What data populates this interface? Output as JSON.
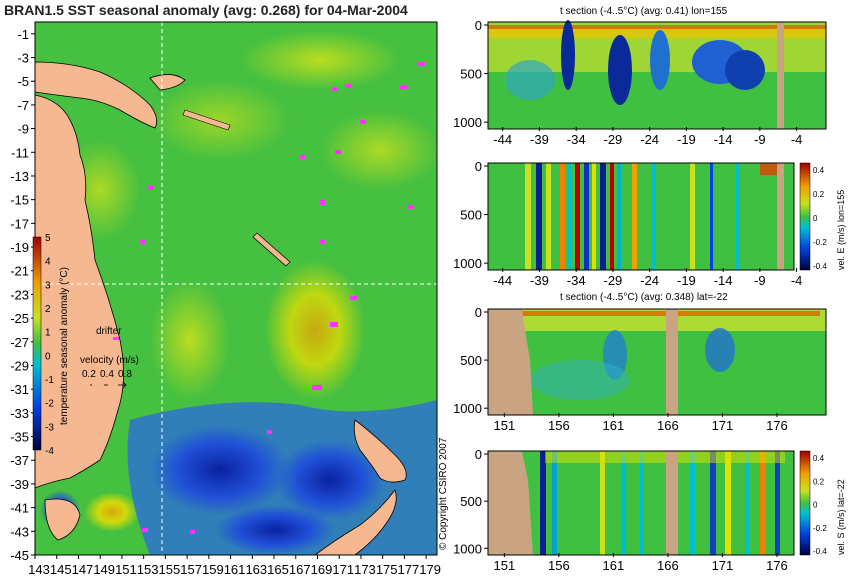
{
  "chart_data": [
    {
      "type": "heatmap",
      "title": "BRAN1.5 SST seasonal anomaly (avg: 0.268) for 04-Mar-2004",
      "xlabel": "",
      "ylabel": "",
      "xlim": [
        143,
        180
      ],
      "ylim": [
        -45,
        0
      ],
      "x_ticks": [
        "143",
        "145",
        "147",
        "149",
        "151",
        "153",
        "155",
        "157",
        "159",
        "161",
        "163",
        "165",
        "167",
        "169",
        "171",
        "173",
        "175",
        "177",
        "179"
      ],
      "y_ticks": [
        "-1",
        "-3",
        "-5",
        "-7",
        "-9",
        "-11",
        "-13",
        "-15",
        "-17",
        "-19",
        "-21",
        "-23",
        "-25",
        "-27",
        "-29",
        "-31",
        "-33",
        "-35",
        "-37",
        "-39",
        "-41",
        "-43",
        "-45"
      ],
      "crosshair": {
        "lon": 155,
        "lat": -22
      },
      "colorbar": {
        "label": "temperature seasonal anomaly (°C)",
        "ticks": [
          "5",
          "4",
          "3",
          "2",
          "1",
          "0",
          "-1",
          "-2",
          "-3",
          "-4"
        ],
        "range": [
          -4,
          5
        ]
      },
      "legend": {
        "drifter_label": "drifter",
        "velocity_title": "velocity (m/s)",
        "velocity_values": [
          "0.2",
          "0.4",
          "0.8"
        ]
      },
      "copyright": "© Copyright CSIRO 2007",
      "colors": {
        "land": "#f5b891",
        "cold": "#0b2fb0",
        "neutral": "#46c040",
        "warm": "#f0e000",
        "hot": "#c00000",
        "drifter": "#ff33ff"
      }
    },
    {
      "type": "heatmap",
      "title": "t section (-4..5°C) (avg: 0.41) lon=155",
      "x_ticks": [
        "-44",
        "-39",
        "-34",
        "-29",
        "-24",
        "-19",
        "-14",
        "-9",
        "-4"
      ],
      "y_ticks": [
        "0",
        "500",
        "1000"
      ],
      "xlim": [
        -46,
        0
      ],
      "ylim": [
        1050,
        0
      ]
    },
    {
      "type": "heatmap",
      "title": "vel. E (m/s) lon=155",
      "x_ticks": [
        "-44",
        "-39",
        "-34",
        "-29",
        "-24",
        "-19",
        "-14",
        "-9",
        "-4"
      ],
      "y_ticks": [
        "0",
        "500",
        "1000"
      ],
      "colorbar": {
        "label": "vel. E (m/s) lon=155",
        "ticks": [
          "0.4",
          "0.2",
          "0",
          "-0.2",
          "-0.4"
        ],
        "range": [
          -0.4,
          0.4
        ]
      }
    },
    {
      "type": "heatmap",
      "title": "t section (-4..5°C) (avg: 0.348) lat=-22",
      "x_ticks": [
        "151",
        "156",
        "161",
        "166",
        "171",
        "176"
      ],
      "y_ticks": [
        "0",
        "500",
        "1000"
      ],
      "xlim": [
        149.5,
        180
      ]
    },
    {
      "type": "heatmap",
      "title": "vel. S (m/s) lat=-22",
      "x_ticks": [
        "151",
        "156",
        "161",
        "166",
        "171",
        "176"
      ],
      "y_ticks": [
        "0",
        "500",
        "1000"
      ],
      "colorbar": {
        "label": "vel. S (m/s) lat=-22",
        "ticks": [
          "0.4",
          "0.2",
          "0",
          "-0.2",
          "-0.4"
        ],
        "range": [
          -0.4,
          0.4
        ]
      }
    }
  ]
}
